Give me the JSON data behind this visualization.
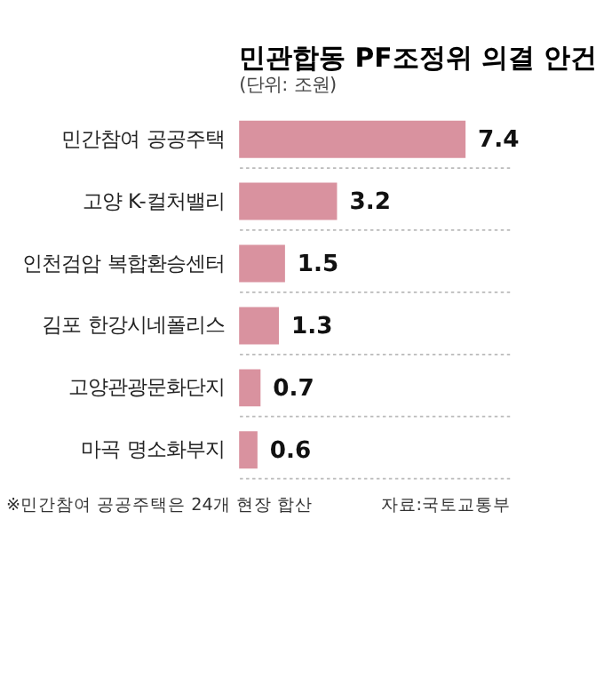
{
  "chart_data": {
    "type": "bar",
    "orientation": "horizontal",
    "title": "민관합동 PF조정위 의결 안건",
    "subtitle": "(단위: 조원)",
    "categories": [
      "민간참여 공공주택",
      "고양 K-컬처밸리",
      "인천검암 복합환승센터",
      "김포 한강시네폴리스",
      "고양관광문화단지",
      "마곡 명소화부지"
    ],
    "values": [
      7.4,
      3.2,
      1.5,
      1.3,
      0.7,
      0.6
    ],
    "color": "#d9929f",
    "data_labels": true,
    "grid": "y",
    "annotations": [
      "※민간참여 공공주택은 24개 현장 합산",
      "자료:국토교통부"
    ]
  }
}
